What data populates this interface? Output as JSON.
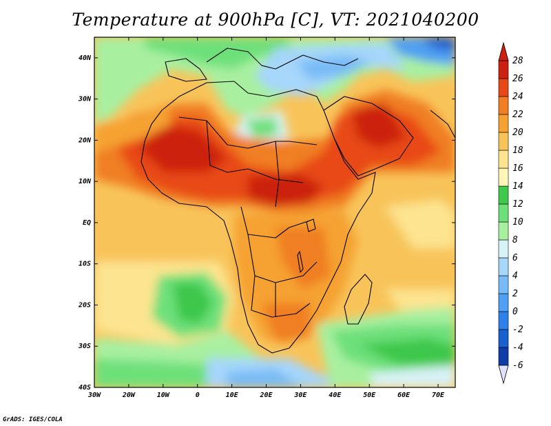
{
  "title": "Temperature at 900hPa [C], VT: 2021040200",
  "credit": "GrADS: IGES/COLA",
  "map": {
    "projection": "lat-lon",
    "lon_range": [
      -30,
      75
    ],
    "lat_range": [
      -40,
      45
    ],
    "lon_ticks": [
      {
        "value": -30,
        "label": "30W"
      },
      {
        "value": -20,
        "label": "20W"
      },
      {
        "value": -10,
        "label": "10W"
      },
      {
        "value": 0,
        "label": "0"
      },
      {
        "value": 10,
        "label": "10E"
      },
      {
        "value": 20,
        "label": "20E"
      },
      {
        "value": 30,
        "label": "30E"
      },
      {
        "value": 40,
        "label": "40E"
      },
      {
        "value": 50,
        "label": "50E"
      },
      {
        "value": 60,
        "label": "60E"
      },
      {
        "value": 70,
        "label": "70E"
      }
    ],
    "lat_ticks": [
      {
        "value": 40,
        "label": "40N"
      },
      {
        "value": 30,
        "label": "30N"
      },
      {
        "value": 20,
        "label": "20N"
      },
      {
        "value": 10,
        "label": "10N"
      },
      {
        "value": 0,
        "label": "EQ"
      },
      {
        "value": -10,
        "label": "10S"
      },
      {
        "value": -20,
        "label": "20S"
      },
      {
        "value": -30,
        "label": "30S"
      },
      {
        "value": -40,
        "label": "40S"
      }
    ]
  },
  "colorbar": {
    "levels": [
      "-6",
      "-4",
      "-2",
      "0",
      "2",
      "4",
      "6",
      "8",
      "10",
      "12",
      "14",
      "16",
      "18",
      "20",
      "22",
      "24",
      "26",
      "28"
    ],
    "colors": [
      "#0a1a7a",
      "#0f3da8",
      "#1a5fd0",
      "#2f80e8",
      "#4f9ff2",
      "#78bbf6",
      "#a6d6fa",
      "#d8f2f6",
      "#a8f0a0",
      "#6ee07a",
      "#3ec84c",
      "#fff6b8",
      "#fde490",
      "#f8c45a",
      "#f5a233",
      "#f07e22",
      "#e84818",
      "#cc2010",
      "#ffffff"
    ]
  }
}
